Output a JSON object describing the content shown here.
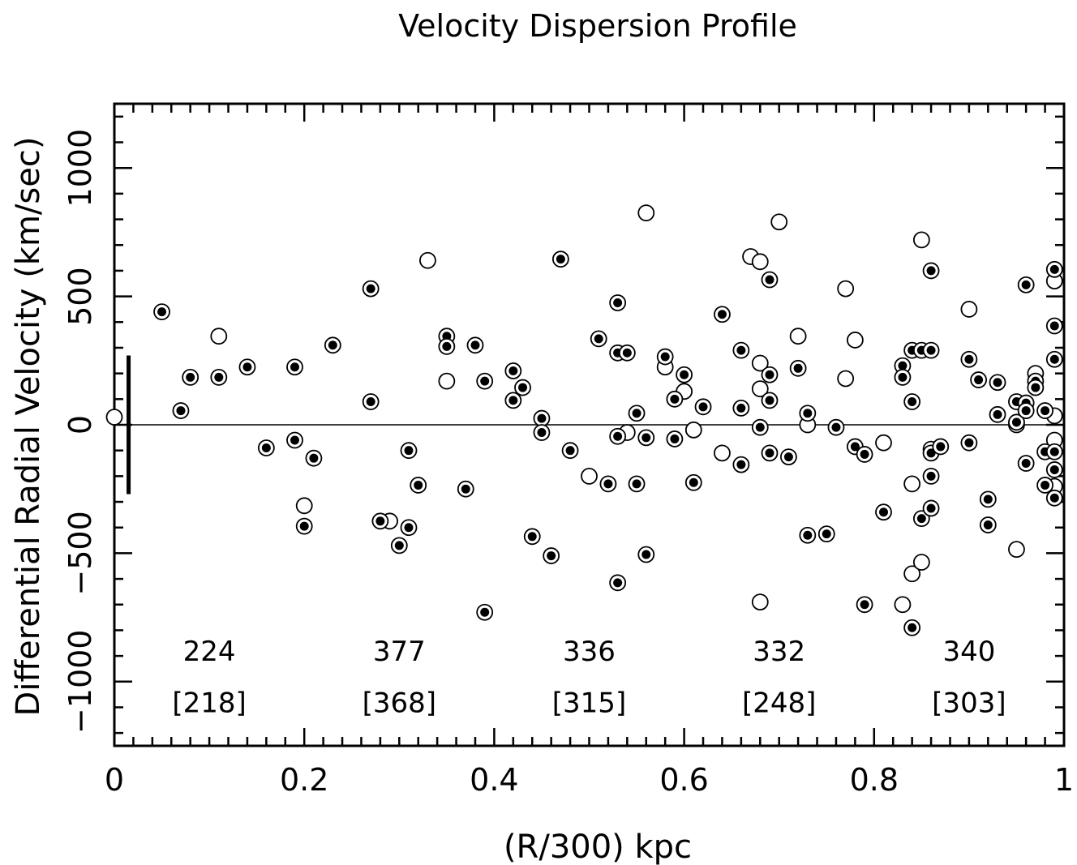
{
  "chart_data": {
    "type": "scatter",
    "title": "Velocity Dispersion Profile",
    "xlabel": "(R/300) kpc",
    "ylabel": "Differential Radial Velocity (km/sec)",
    "xlim": [
      0,
      1
    ],
    "ylim": [
      -1250,
      1250
    ],
    "x_ticks": [
      "0",
      "0.2",
      "0.4",
      "0.6",
      "0.8",
      "1"
    ],
    "y_ticks": [
      "−1000",
      "−500",
      "0",
      "500",
      "1000"
    ],
    "x_tick_values": [
      0,
      0.2,
      0.4,
      0.6,
      0.8,
      1
    ],
    "y_tick_values": [
      -1000,
      -500,
      0,
      500,
      1000
    ],
    "grid": false,
    "zero_line": 0,
    "error_bar": {
      "x": 0.015,
      "y_low": -270,
      "y_high": 270
    },
    "series": [
      {
        "marker": "open-circle",
        "points": [
          [
            0.0,
            30
          ],
          [
            0.11,
            345
          ],
          [
            0.2,
            -315
          ],
          [
            0.29,
            -375
          ],
          [
            0.33,
            640
          ],
          [
            0.35,
            170
          ],
          [
            0.5,
            -200
          ],
          [
            0.54,
            -30
          ],
          [
            0.56,
            825
          ],
          [
            0.58,
            225
          ],
          [
            0.6,
            130
          ],
          [
            0.61,
            -20
          ],
          [
            0.64,
            -110
          ],
          [
            0.67,
            655
          ],
          [
            0.68,
            635
          ],
          [
            0.68,
            240
          ],
          [
            0.68,
            140
          ],
          [
            0.68,
            -690
          ],
          [
            0.7,
            790
          ],
          [
            0.72,
            345
          ],
          [
            0.73,
            0
          ],
          [
            0.77,
            530
          ],
          [
            0.77,
            180
          ],
          [
            0.78,
            330
          ],
          [
            0.81,
            -70
          ],
          [
            0.83,
            -700
          ],
          [
            0.84,
            -230
          ],
          [
            0.84,
            -580
          ],
          [
            0.85,
            720
          ],
          [
            0.85,
            -535
          ],
          [
            0.9,
            450
          ],
          [
            0.95,
            -485
          ],
          [
            0.95,
            0
          ],
          [
            0.97,
            200
          ],
          [
            0.99,
            560
          ],
          [
            0.99,
            35
          ],
          [
            0.99,
            -60
          ],
          [
            0.99,
            -240
          ]
        ]
      },
      {
        "marker": "filled-in-circle",
        "points": [
          [
            0.05,
            440
          ],
          [
            0.07,
            55
          ],
          [
            0.08,
            185
          ],
          [
            0.11,
            185
          ],
          [
            0.14,
            225
          ],
          [
            0.16,
            -90
          ],
          [
            0.19,
            225
          ],
          [
            0.19,
            -60
          ],
          [
            0.2,
            -395
          ],
          [
            0.21,
            -130
          ],
          [
            0.23,
            310
          ],
          [
            0.27,
            530
          ],
          [
            0.27,
            90
          ],
          [
            0.28,
            -375
          ],
          [
            0.3,
            -470
          ],
          [
            0.31,
            -100
          ],
          [
            0.31,
            -400
          ],
          [
            0.32,
            -235
          ],
          [
            0.35,
            345
          ],
          [
            0.35,
            305
          ],
          [
            0.37,
            -250
          ],
          [
            0.38,
            310
          ],
          [
            0.39,
            170
          ],
          [
            0.39,
            -730
          ],
          [
            0.42,
            210
          ],
          [
            0.42,
            95
          ],
          [
            0.43,
            145
          ],
          [
            0.44,
            -435
          ],
          [
            0.45,
            25
          ],
          [
            0.45,
            -30
          ],
          [
            0.46,
            -510
          ],
          [
            0.47,
            645
          ],
          [
            0.48,
            -100
          ],
          [
            0.51,
            335
          ],
          [
            0.52,
            -230
          ],
          [
            0.53,
            475
          ],
          [
            0.53,
            280
          ],
          [
            0.53,
            -45
          ],
          [
            0.53,
            -615
          ],
          [
            0.54,
            280
          ],
          [
            0.55,
            45
          ],
          [
            0.55,
            -230
          ],
          [
            0.56,
            -50
          ],
          [
            0.56,
            -505
          ],
          [
            0.58,
            265
          ],
          [
            0.59,
            100
          ],
          [
            0.59,
            -55
          ],
          [
            0.6,
            195
          ],
          [
            0.61,
            -225
          ],
          [
            0.62,
            70
          ],
          [
            0.64,
            430
          ],
          [
            0.66,
            290
          ],
          [
            0.66,
            65
          ],
          [
            0.66,
            -155
          ],
          [
            0.68,
            -10
          ],
          [
            0.69,
            565
          ],
          [
            0.69,
            195
          ],
          [
            0.69,
            95
          ],
          [
            0.69,
            -110
          ],
          [
            0.71,
            -125
          ],
          [
            0.72,
            220
          ],
          [
            0.73,
            45
          ],
          [
            0.73,
            -430
          ],
          [
            0.75,
            -425
          ],
          [
            0.76,
            -10
          ],
          [
            0.78,
            -85
          ],
          [
            0.79,
            -115
          ],
          [
            0.79,
            -700
          ],
          [
            0.81,
            -340
          ],
          [
            0.83,
            230
          ],
          [
            0.83,
            185
          ],
          [
            0.84,
            290
          ],
          [
            0.84,
            90
          ],
          [
            0.84,
            -790
          ],
          [
            0.85,
            290
          ],
          [
            0.85,
            -365
          ],
          [
            0.86,
            600
          ],
          [
            0.86,
            290
          ],
          [
            0.86,
            -95
          ],
          [
            0.86,
            -110
          ],
          [
            0.86,
            -200
          ],
          [
            0.86,
            -325
          ],
          [
            0.87,
            -85
          ],
          [
            0.9,
            255
          ],
          [
            0.9,
            -70
          ],
          [
            0.91,
            175
          ],
          [
            0.92,
            -290
          ],
          [
            0.92,
            -390
          ],
          [
            0.93,
            165
          ],
          [
            0.93,
            40
          ],
          [
            0.95,
            90
          ],
          [
            0.95,
            10
          ],
          [
            0.96,
            545
          ],
          [
            0.96,
            85
          ],
          [
            0.96,
            55
          ],
          [
            0.96,
            -150
          ],
          [
            0.97,
            170
          ],
          [
            0.97,
            145
          ],
          [
            0.98,
            55
          ],
          [
            0.98,
            -105
          ],
          [
            0.98,
            -235
          ],
          [
            0.99,
            605
          ],
          [
            0.99,
            385
          ],
          [
            0.99,
            255
          ],
          [
            0.99,
            -105
          ],
          [
            0.99,
            -175
          ],
          [
            0.99,
            -285
          ]
        ]
      }
    ],
    "bins": [
      {
        "x": 0.1,
        "value": "224",
        "bracket": "[218]"
      },
      {
        "x": 0.3,
        "value": "377",
        "bracket": "[368]"
      },
      {
        "x": 0.5,
        "value": "336",
        "bracket": "[315]"
      },
      {
        "x": 0.7,
        "value": "332",
        "bracket": "[248]"
      },
      {
        "x": 0.9,
        "value": "340",
        "bracket": "[303]"
      }
    ],
    "bin_value_y": -875,
    "bin_bracket_y": -1075
  }
}
